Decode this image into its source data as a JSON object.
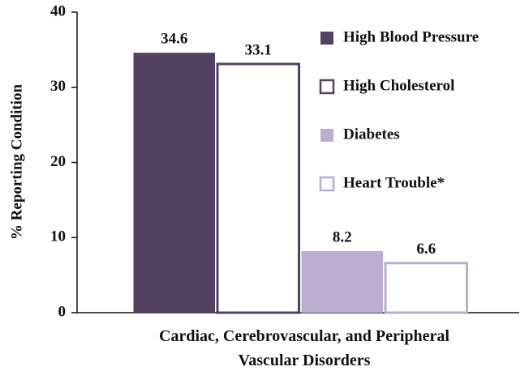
{
  "chart_data": {
    "type": "bar",
    "categories": [
      "Cardiac, Cerebrovascular, and Peripheral Vascular Disorders"
    ],
    "series": [
      {
        "name": "High Blood Pressure",
        "color": "#534161",
        "outlined": false,
        "values": [
          34.6
        ]
      },
      {
        "name": "High Cholesterol",
        "color": "#534161",
        "outlined": true,
        "values": [
          33.1
        ]
      },
      {
        "name": "Diabetes",
        "color": "#bcaed0",
        "outlined": false,
        "values": [
          8.2
        ]
      },
      {
        "name": "Heart Trouble*",
        "color": "#bcaed0",
        "outlined": true,
        "values": [
          6.6
        ]
      }
    ],
    "y_label": "% Reporting Condition",
    "ylim": [
      0,
      40
    ],
    "yticks": [
      0,
      10,
      20,
      30,
      40
    ],
    "legend": "top-right",
    "grid": false
  }
}
